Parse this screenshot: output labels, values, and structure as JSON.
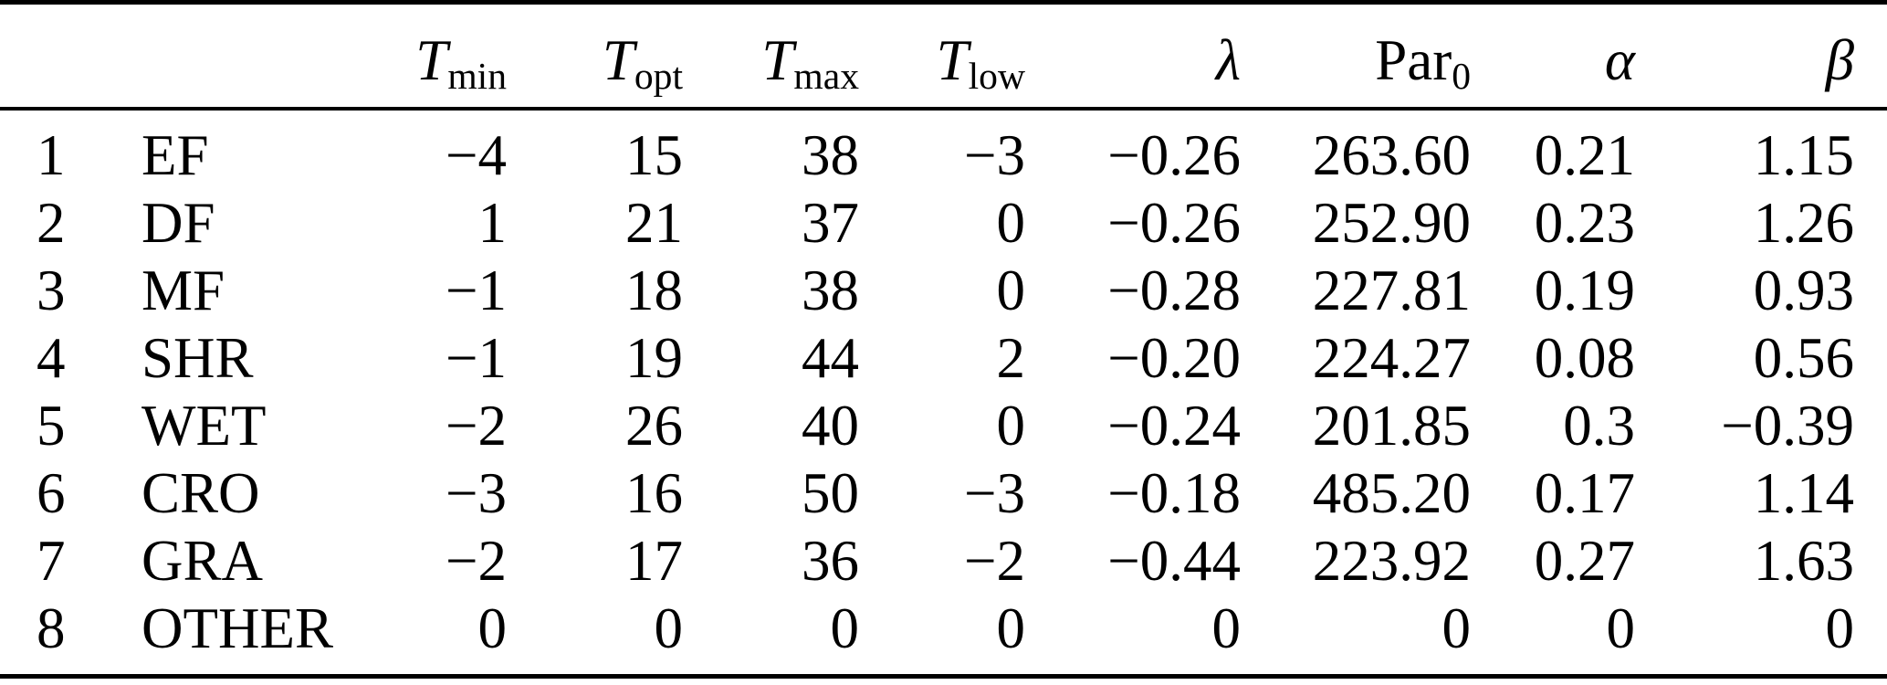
{
  "colors": {
    "text": "#000000",
    "background": "#ffffff",
    "rule": "#000000"
  },
  "table": {
    "columns": [
      {
        "id": "index",
        "base": "",
        "sub": ""
      },
      {
        "id": "label",
        "base": "",
        "sub": ""
      },
      {
        "id": "tmin",
        "base": "T",
        "sub": "min"
      },
      {
        "id": "topt",
        "base": "T",
        "sub": "opt"
      },
      {
        "id": "tmax",
        "base": "T",
        "sub": "max"
      },
      {
        "id": "tlow",
        "base": "T",
        "sub": "low"
      },
      {
        "id": "lambda",
        "base": "λ",
        "sub": ""
      },
      {
        "id": "par0",
        "base": "Par",
        "sub": "0"
      },
      {
        "id": "alpha",
        "base": "α",
        "sub": ""
      },
      {
        "id": "beta",
        "base": "β",
        "sub": ""
      }
    ],
    "rows": [
      {
        "num": "1",
        "label": "EF",
        "tmin": "−4",
        "topt": "15",
        "tmax": "38",
        "tlow": "−3",
        "lambda": "−0.26",
        "par0": "263.60",
        "alpha": "0.21",
        "beta": "1.15"
      },
      {
        "num": "2",
        "label": "DF",
        "tmin": "1",
        "topt": "21",
        "tmax": "37",
        "tlow": "0",
        "lambda": "−0.26",
        "par0": "252.90",
        "alpha": "0.23",
        "beta": "1.26"
      },
      {
        "num": "3",
        "label": "MF",
        "tmin": "−1",
        "topt": "18",
        "tmax": "38",
        "tlow": "0",
        "lambda": "−0.28",
        "par0": "227.81",
        "alpha": "0.19",
        "beta": "0.93"
      },
      {
        "num": "4",
        "label": "SHR",
        "tmin": "−1",
        "topt": "19",
        "tmax": "44",
        "tlow": "2",
        "lambda": "−0.20",
        "par0": "224.27",
        "alpha": "0.08",
        "beta": "0.56"
      },
      {
        "num": "5",
        "label": "WET",
        "tmin": "−2",
        "topt": "26",
        "tmax": "40",
        "tlow": "0",
        "lambda": "−0.24",
        "par0": "201.85",
        "alpha": "0.3",
        "beta": "−0.39"
      },
      {
        "num": "6",
        "label": "CRO",
        "tmin": "−3",
        "topt": "16",
        "tmax": "50",
        "tlow": "−3",
        "lambda": "−0.18",
        "par0": "485.20",
        "alpha": "0.17",
        "beta": "1.14"
      },
      {
        "num": "7",
        "label": "GRA",
        "tmin": "−2",
        "topt": "17",
        "tmax": "36",
        "tlow": "−2",
        "lambda": "−0.44",
        "par0": "223.92",
        "alpha": "0.27",
        "beta": "1.63"
      },
      {
        "num": "8",
        "label": "OTHER",
        "tmin": "0",
        "topt": "0",
        "tmax": "0",
        "tlow": "0",
        "lambda": "0",
        "par0": "0",
        "alpha": "0",
        "beta": "0"
      }
    ]
  }
}
